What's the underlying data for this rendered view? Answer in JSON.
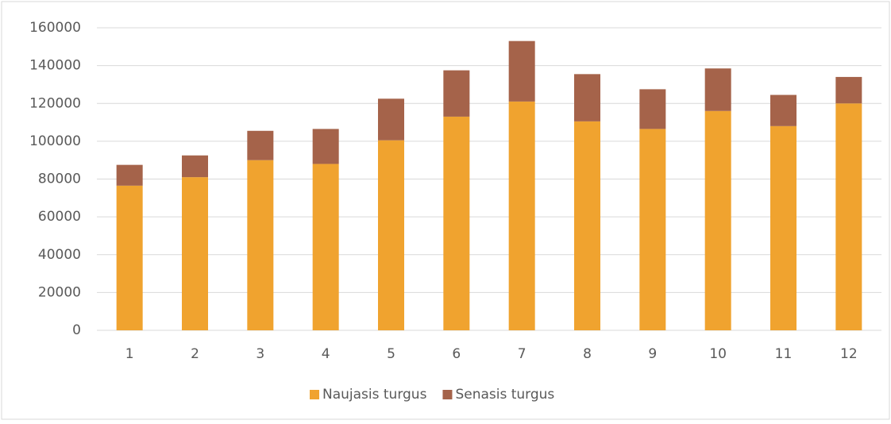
{
  "chart_data": {
    "type": "stacked_bar",
    "categories": [
      "1",
      "2",
      "3",
      "4",
      "5",
      "6",
      "7",
      "8",
      "9",
      "10",
      "11",
      "12"
    ],
    "series": [
      {
        "name": "Naujasis turgus",
        "color": "#f0a32f",
        "values": [
          76500,
          81000,
          90000,
          88000,
          100500,
          113000,
          121000,
          110500,
          106500,
          116000,
          108000,
          120000
        ]
      },
      {
        "name": "Senasis turgus",
        "color": "#a5634a",
        "values": [
          11000,
          11500,
          15500,
          18500,
          22000,
          24500,
          32000,
          25000,
          21000,
          22500,
          16500,
          14000
        ]
      }
    ],
    "ylim": [
      0,
      160000
    ],
    "yticks": [
      0,
      20000,
      40000,
      60000,
      80000,
      100000,
      120000,
      140000,
      160000
    ],
    "grid": true,
    "legend": "bottom"
  }
}
